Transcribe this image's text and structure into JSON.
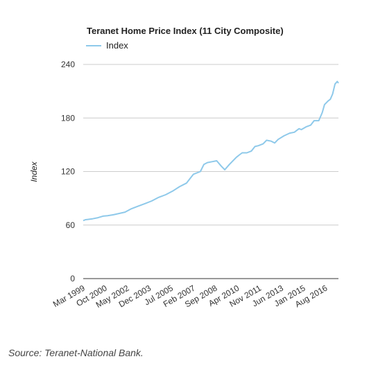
{
  "chart_data": {
    "type": "line",
    "title": "Teranet Home Price Index (11 City Composite)",
    "xlabel": "",
    "ylabel": "Index",
    "ylim": [
      0,
      240
    ],
    "yticks": [
      0,
      60,
      120,
      180,
      240
    ],
    "grid": true,
    "legend": "top-left",
    "x_tick_labels": [
      "Mar 1999",
      "Oct 2000",
      "May 2002",
      "Dec 2003",
      "Jul 2005",
      "Feb 2007",
      "Sep 2008",
      "Apr 2010",
      "Nov 2011",
      "Jun 2013",
      "Jan 2015",
      "Aug 2016"
    ],
    "series": [
      {
        "name": "Index",
        "color": "#8ec9ea",
        "x": [
          "Jan 1999",
          "Mar 1999",
          "Jun 1999",
          "Sep 1999",
          "Jan 2000",
          "Jun 2000",
          "Oct 2000",
          "Mar 2001",
          "Aug 2001",
          "Jan 2002",
          "Jun 2002",
          "Dec 2002",
          "Jun 2003",
          "Dec 2003",
          "Jun 2004",
          "Dec 2004",
          "Jun 2005",
          "Dec 2005",
          "Jun 2006",
          "Sep 2006",
          "Dec 2006",
          "Jun 2007",
          "Sep 2007",
          "Dec 2007",
          "Apr 2008",
          "Aug 2008",
          "Dec 2008",
          "Mar 2009",
          "Jul 2009",
          "Jan 2010",
          "Apr 2010",
          "Jun 2010",
          "Oct 2010",
          "Feb 2011",
          "May 2011",
          "Aug 2011",
          "Dec 2011",
          "Mar 2012",
          "Jul 2012",
          "Oct 2012",
          "Jan 2013",
          "Jun 2013",
          "Nov 2013",
          "Mar 2014",
          "Jul 2014",
          "Sep 2014",
          "Jan 2015",
          "May 2015",
          "Aug 2015",
          "Dec 2015",
          "Mar 2016",
          "May 2016",
          "Aug 2016",
          "Oct 2016",
          "Dec 2016",
          "Feb 2017",
          "Apr 2017",
          "May 2017"
        ],
        "values": [
          65,
          66,
          66.5,
          67,
          68,
          70,
          70.5,
          71.5,
          73,
          74.5,
          78,
          81,
          84,
          87,
          91,
          94,
          98,
          103,
          107,
          112,
          117,
          120,
          128,
          130,
          131,
          132,
          126,
          122,
          128,
          136,
          139,
          141,
          141,
          143,
          148,
          149,
          151,
          155,
          154,
          152,
          156,
          160,
          163,
          164,
          168,
          167,
          170,
          172,
          177,
          177,
          186,
          195,
          199,
          201,
          207,
          218,
          221,
          219
        ]
      }
    ]
  },
  "footer": {
    "source": "Source: Teranet-National Bank."
  }
}
